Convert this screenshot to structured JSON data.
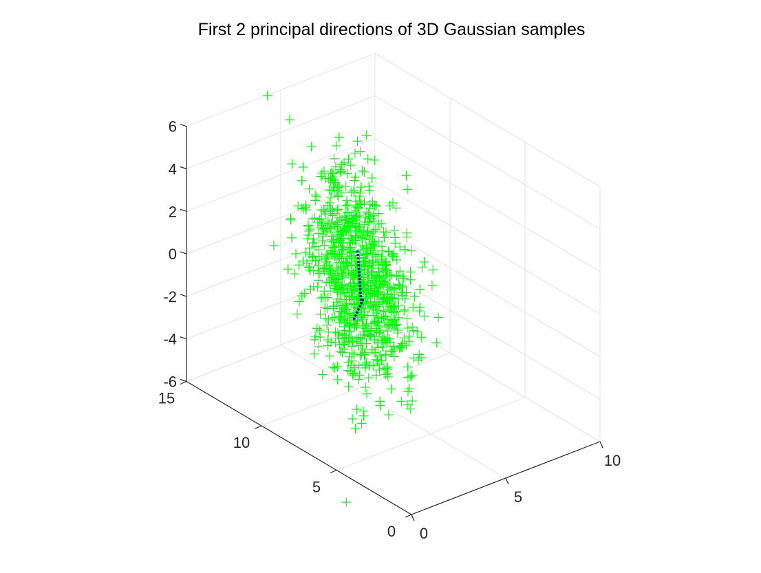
{
  "chart_data": {
    "type": "scatter",
    "title": "First 2 principal directions of 3D Gaussian samples",
    "xlabel": "",
    "ylabel": "",
    "zlabel": "",
    "xlim": [
      0,
      10
    ],
    "ylim": [
      0,
      15
    ],
    "zlim": [
      -6,
      6
    ],
    "x_ticks": [
      "0",
      "5",
      "10"
    ],
    "y_ticks": [
      "0",
      "5",
      "10",
      "15"
    ],
    "z_ticks": [
      "-6",
      "-4",
      "-2",
      "0",
      "2",
      "4",
      "6"
    ],
    "grid": true,
    "marker": "+",
    "colors": {
      "samples": "#00ff00",
      "principal_directions": "#0000cc"
    },
    "point_count": 1000,
    "cloud": {
      "center": [
        4.3,
        9.0,
        0.0
      ],
      "std": [
        1.1,
        1.5,
        1.9
      ],
      "correlation_xz": 0.25,
      "correlation_yz": 0.72
    },
    "principal_direction_segments": [
      {
        "from": [
          4.5,
          9.0,
          -1.4
        ],
        "to": [
          4.3,
          9.0,
          1.2
        ]
      },
      {
        "from": [
          4.1,
          9.0,
          -2.0
        ],
        "to": [
          4.6,
          9.0,
          -1.2
        ]
      }
    ]
  }
}
